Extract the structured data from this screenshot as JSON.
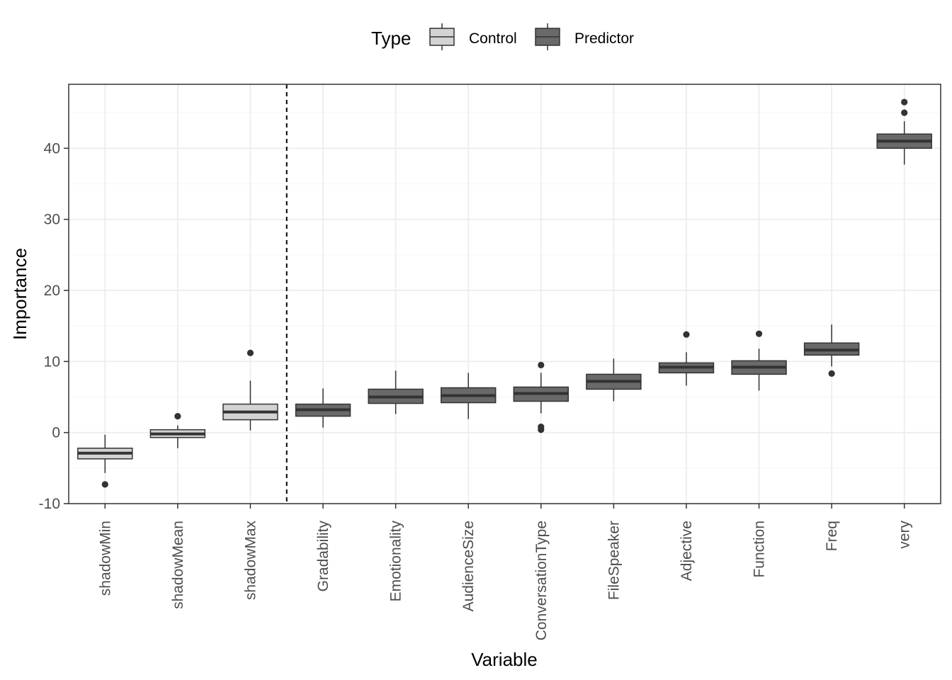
{
  "chart_data": {
    "type": "boxplot",
    "xlabel": "Variable",
    "ylabel": "Importance",
    "ylim": [
      -10,
      49
    ],
    "yticks": [
      -10,
      0,
      10,
      20,
      30,
      40
    ],
    "grid": true,
    "legend": {
      "title": "Type",
      "position": "top",
      "entries": [
        {
          "label": "Control",
          "color": "#d3d3d3"
        },
        {
          "label": "Predictor",
          "color": "#696969"
        }
      ]
    },
    "reference_line_after": "shadowMax",
    "categories": [
      "shadowMin",
      "shadowMean",
      "shadowMax",
      "Gradability",
      "Emotionality",
      "AudienceSize",
      "ConversationType",
      "FileSpeaker",
      "Adjective",
      "Function",
      "Freq",
      "very"
    ],
    "boxes": [
      {
        "category": "shadowMin",
        "type": "Control",
        "whisker_low": -5.7,
        "q1": -3.7,
        "median": -2.9,
        "q3": -2.2,
        "whisker_high": -0.3,
        "outliers": [
          -7.3
        ]
      },
      {
        "category": "shadowMean",
        "type": "Control",
        "whisker_low": -2.2,
        "q1": -0.7,
        "median": -0.2,
        "q3": 0.4,
        "whisker_high": 1.0,
        "outliers": [
          2.3
        ]
      },
      {
        "category": "shadowMax",
        "type": "Control",
        "whisker_low": 0.3,
        "q1": 1.8,
        "median": 2.9,
        "q3": 4.0,
        "whisker_high": 7.3,
        "outliers": [
          11.2
        ]
      },
      {
        "category": "Gradability",
        "type": "Predictor",
        "whisker_low": 0.7,
        "q1": 2.3,
        "median": 3.2,
        "q3": 4.0,
        "whisker_high": 6.2,
        "outliers": []
      },
      {
        "category": "Emotionality",
        "type": "Predictor",
        "whisker_low": 2.6,
        "q1": 4.1,
        "median": 5.0,
        "q3": 6.1,
        "whisker_high": 8.7,
        "outliers": []
      },
      {
        "category": "AudienceSize",
        "type": "Predictor",
        "whisker_low": 1.9,
        "q1": 4.2,
        "median": 5.2,
        "q3": 6.3,
        "whisker_high": 8.4,
        "outliers": []
      },
      {
        "category": "ConversationType",
        "type": "Predictor",
        "whisker_low": 2.7,
        "q1": 4.4,
        "median": 5.5,
        "q3": 6.4,
        "whisker_high": 8.4,
        "outliers": [
          9.5,
          0.8,
          0.4
        ]
      },
      {
        "category": "FileSpeaker",
        "type": "Predictor",
        "whisker_low": 4.4,
        "q1": 6.1,
        "median": 7.2,
        "q3": 8.2,
        "whisker_high": 10.4,
        "outliers": []
      },
      {
        "category": "Adjective",
        "type": "Predictor",
        "whisker_low": 6.6,
        "q1": 8.4,
        "median": 9.2,
        "q3": 9.8,
        "whisker_high": 11.3,
        "outliers": [
          13.8
        ]
      },
      {
        "category": "Function",
        "type": "Predictor",
        "whisker_low": 5.9,
        "q1": 8.2,
        "median": 9.2,
        "q3": 10.1,
        "whisker_high": 11.8,
        "outliers": [
          13.9
        ]
      },
      {
        "category": "Freq",
        "type": "Predictor",
        "whisker_low": 9.3,
        "q1": 10.9,
        "median": 11.6,
        "q3": 12.6,
        "whisker_high": 15.2,
        "outliers": [
          8.3
        ]
      },
      {
        "category": "very",
        "type": "Predictor",
        "whisker_low": 37.7,
        "q1": 40.0,
        "median": 41.0,
        "q3": 42.0,
        "whisker_high": 43.8,
        "outliers": [
          45.0,
          46.5
        ]
      }
    ]
  }
}
